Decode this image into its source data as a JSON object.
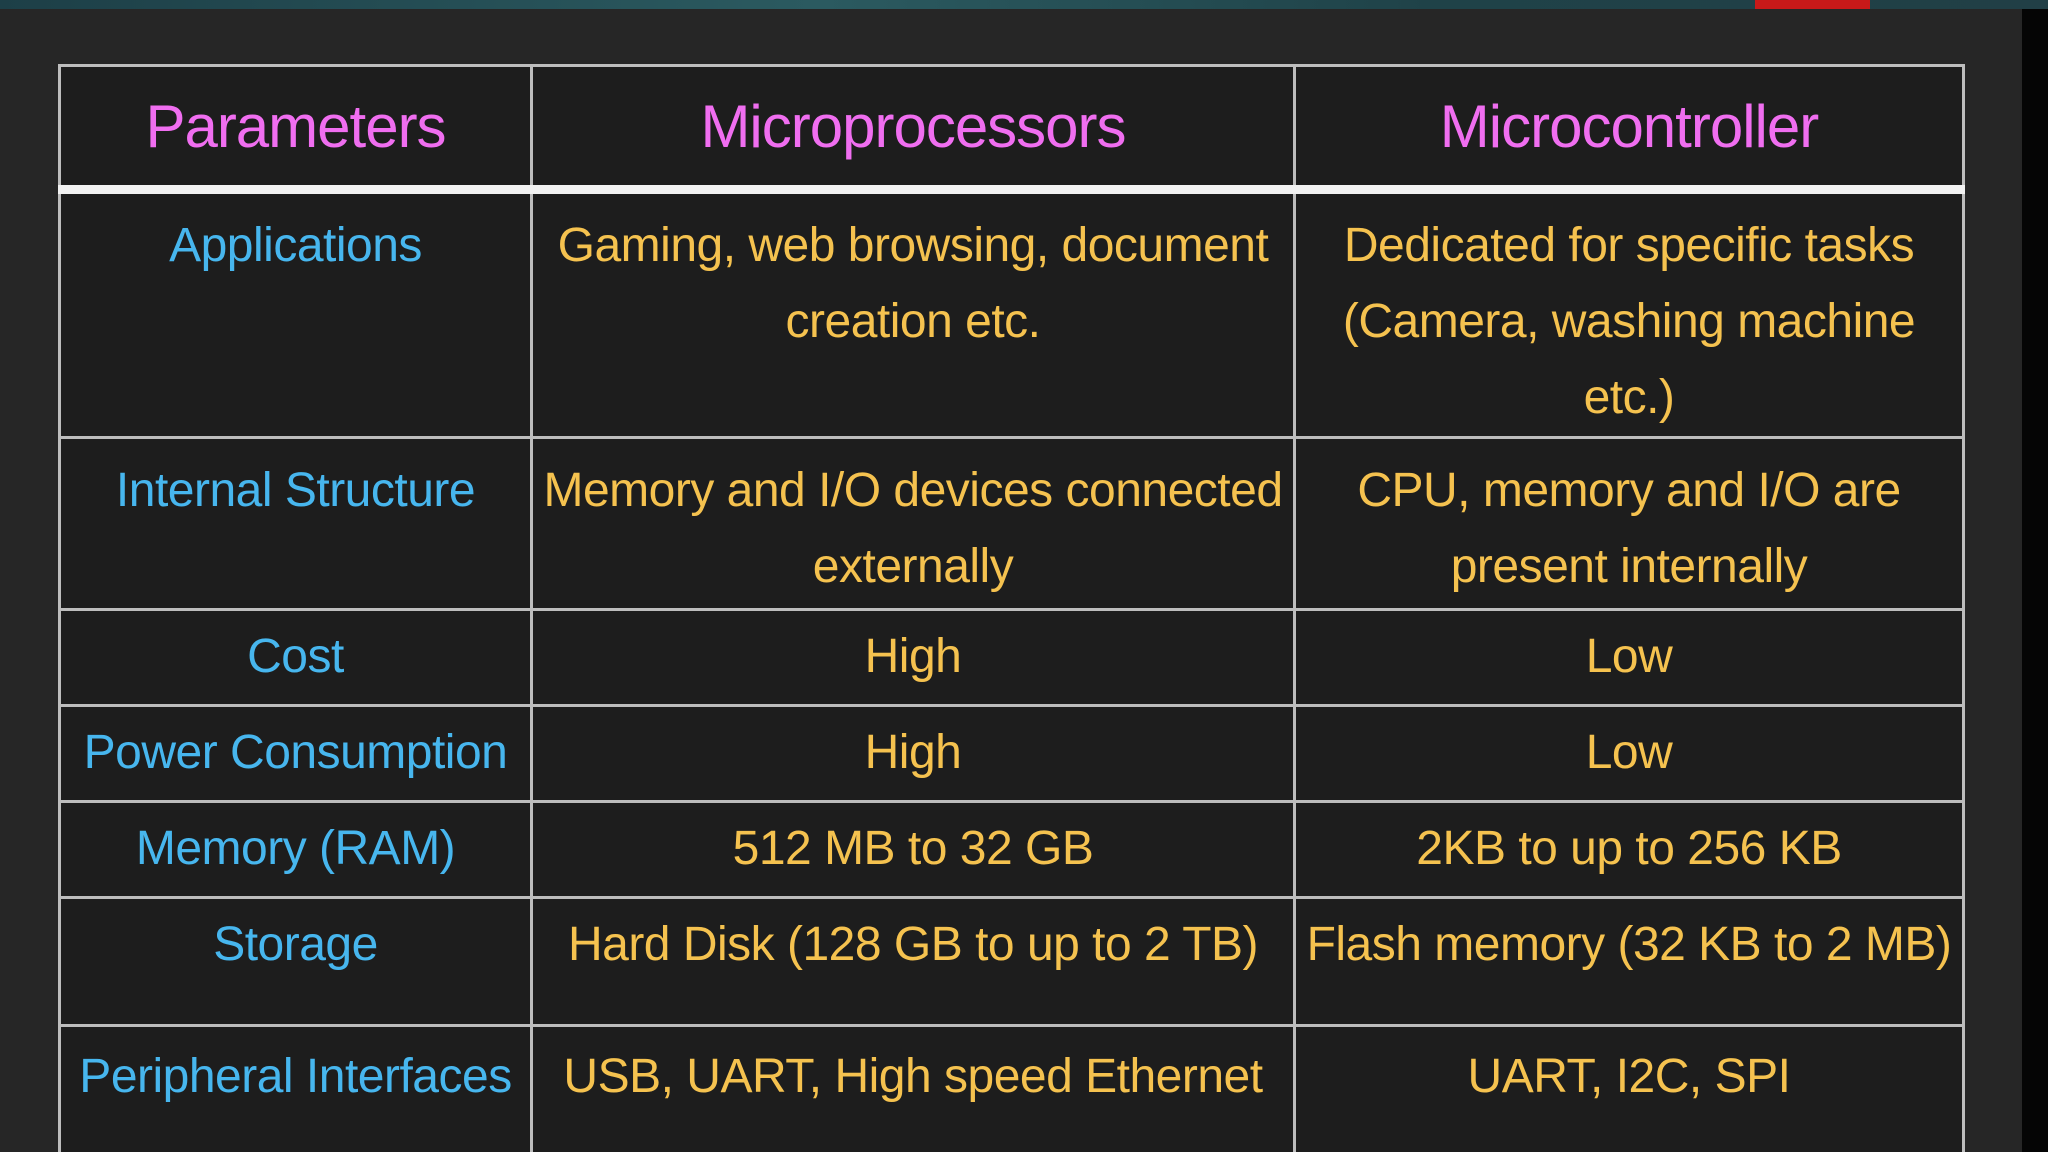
{
  "table": {
    "headers": [
      "Parameters",
      "Microprocessors",
      "Microcontroller"
    ],
    "rows": [
      {
        "parameter": "Applications",
        "microprocessors": "Gaming, web browsing, document creation etc.",
        "microcontroller": "Dedicated for specific tasks (Camera, washing machine etc.)"
      },
      {
        "parameter": "Internal Structure",
        "microprocessors": "Memory and I/O devices connected externally",
        "microcontroller": "CPU, memory and I/O are present internally"
      },
      {
        "parameter": "Cost",
        "microprocessors": "High",
        "microcontroller": "Low"
      },
      {
        "parameter": "Power Consumption",
        "microprocessors": "High",
        "microcontroller": "Low"
      },
      {
        "parameter": "Memory (RAM)",
        "microprocessors": "512 MB to 32 GB",
        "microcontroller": "2KB to up to 256 KB"
      },
      {
        "parameter": "Storage",
        "microprocessors": "Hard Disk (128 GB to up to 2 TB)",
        "microcontroller": "Flash memory (32 KB to 2 MB)"
      },
      {
        "parameter": "Peripheral Interfaces",
        "microprocessors": "USB, UART, High speed Ethernet",
        "microcontroller": "UART, I2C, SPI"
      }
    ]
  },
  "colors": {
    "header_text": "#f06ef0",
    "parameter_text": "#47b6ee",
    "value_text": "#f5c24f",
    "background": "#262626",
    "grid": "#bdbdbd",
    "accent": "#c81919"
  }
}
